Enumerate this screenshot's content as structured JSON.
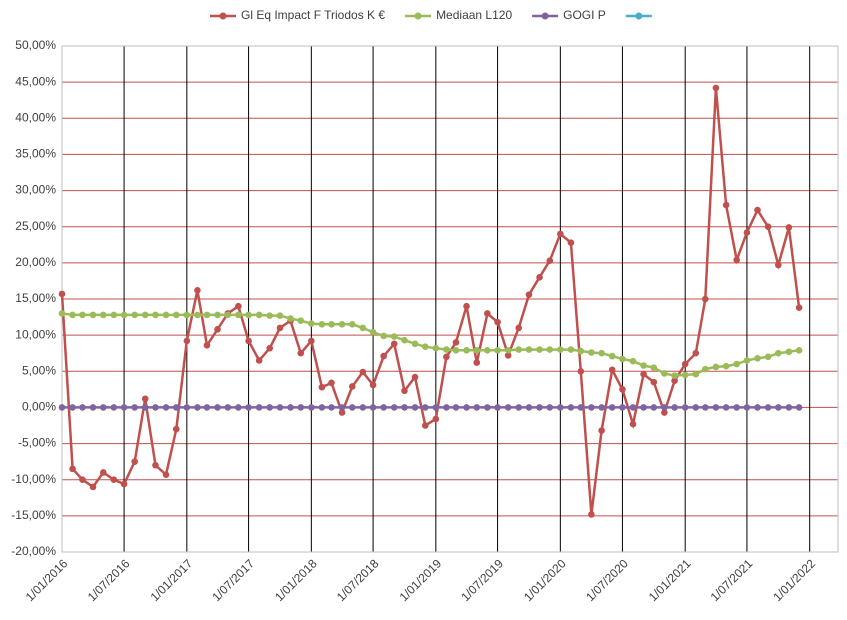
{
  "chart_data": {
    "type": "line",
    "x": [
      "2016-01-01",
      "2016-02-01",
      "2016-03-01",
      "2016-04-01",
      "2016-05-01",
      "2016-06-01",
      "2016-07-01",
      "2016-08-01",
      "2016-09-01",
      "2016-10-01",
      "2016-11-01",
      "2016-12-01",
      "2017-01-01",
      "2017-02-01",
      "2017-03-01",
      "2017-04-01",
      "2017-05-01",
      "2017-06-01",
      "2017-07-01",
      "2017-08-01",
      "2017-09-01",
      "2017-10-01",
      "2017-11-01",
      "2017-12-01",
      "2018-01-01",
      "2018-02-01",
      "2018-03-01",
      "2018-04-01",
      "2018-05-01",
      "2018-06-01",
      "2018-07-01",
      "2018-08-01",
      "2018-09-01",
      "2018-10-01",
      "2018-11-01",
      "2018-12-01",
      "2019-01-01",
      "2019-02-01",
      "2019-03-01",
      "2019-04-01",
      "2019-05-01",
      "2019-06-01",
      "2019-07-01",
      "2019-08-01",
      "2019-09-01",
      "2019-10-01",
      "2019-11-01",
      "2019-12-01",
      "2020-01-01",
      "2020-02-01",
      "2020-03-01",
      "2020-04-01",
      "2020-05-01",
      "2020-06-01",
      "2020-07-01",
      "2020-08-01",
      "2020-09-01",
      "2020-10-01",
      "2020-11-01",
      "2020-12-01",
      "2021-01-01",
      "2021-02-01",
      "2021-03-01",
      "2021-04-01",
      "2021-05-01",
      "2021-06-01",
      "2021-07-01",
      "2021-08-01",
      "2021-09-01",
      "2021-10-01",
      "2021-11-01",
      "2021-12-01"
    ],
    "series": [
      {
        "name": "Gl Eq Impact F Triodos K €",
        "color": "#c0504d",
        "values": [
          15.7,
          -8.5,
          -10,
          -11,
          -9,
          -10,
          -10.6,
          -7.5,
          1.2,
          -8,
          -9.3,
          -3,
          9.2,
          16.2,
          8.6,
          10.8,
          13,
          14,
          9.2,
          6.5,
          8.2,
          11,
          12,
          7.5,
          9.2,
          2.8,
          3.4,
          -0.7,
          2.9,
          4.9,
          3.1,
          7.1,
          8.8,
          2.3,
          4.2,
          -2.5,
          -1.6,
          7,
          9,
          14,
          6.2,
          13,
          11.8,
          7.2,
          11,
          15.6,
          18,
          20.3,
          24,
          22.8,
          5,
          -14.8,
          -3.2,
          5.2,
          2.5,
          -2.3,
          4.6,
          3.5,
          -0.7,
          3.7,
          6,
          7.5,
          15,
          44.2,
          28,
          20.4,
          24.2,
          27.3,
          25,
          19.7,
          24.9,
          13.8
        ]
      },
      {
        "name": "Mediaan L120",
        "color": "#9bbb59",
        "values": [
          13,
          12.8,
          12.8,
          12.8,
          12.8,
          12.8,
          12.8,
          12.8,
          12.8,
          12.8,
          12.8,
          12.8,
          12.8,
          12.8,
          12.8,
          12.8,
          12.8,
          12.8,
          12.8,
          12.8,
          12.7,
          12.7,
          12.3,
          12,
          11.6,
          11.5,
          11.5,
          11.5,
          11.5,
          11,
          10.4,
          9.9,
          9.8,
          9.3,
          8.8,
          8.4,
          8.2,
          8,
          7.9,
          7.9,
          7.9,
          7.9,
          7.9,
          7.9,
          8,
          8,
          8,
          8,
          8,
          8,
          7.8,
          7.6,
          7.5,
          7.1,
          6.7,
          6.4,
          5.8,
          5.5,
          4.7,
          4.4,
          4.5,
          4.6,
          5.3,
          5.6,
          5.7,
          6,
          6.5,
          6.8,
          7,
          7.5,
          7.7,
          7.9
        ]
      },
      {
        "name": "GOGI P",
        "color": "#8064a2",
        "values": [
          0,
          0,
          0,
          0,
          0,
          0,
          0,
          0,
          0,
          0,
          0,
          0,
          0,
          0,
          0,
          0,
          0,
          0,
          0,
          0,
          0,
          0,
          0,
          0,
          0,
          0,
          0,
          0,
          0,
          0,
          0,
          0,
          0,
          0,
          0,
          0,
          0,
          0,
          0,
          0,
          0,
          0,
          0,
          0,
          0,
          0,
          0,
          0,
          0,
          0,
          0,
          0,
          0,
          0,
          0,
          0,
          0,
          0,
          0,
          0,
          0,
          0,
          0,
          0,
          0,
          0,
          0,
          0,
          0,
          0,
          0,
          0
        ]
      }
    ],
    "xlim": [
      "2016-01-01",
      "2022-03-25"
    ],
    "xticks": [
      {
        "value": "2016-01-01",
        "label": "1/01/2016"
      },
      {
        "value": "2016-07-01",
        "label": "1/07/2016"
      },
      {
        "value": "2017-01-01",
        "label": "1/01/2017"
      },
      {
        "value": "2017-07-01",
        "label": "1/07/2017"
      },
      {
        "value": "2018-01-01",
        "label": "1/01/2018"
      },
      {
        "value": "2018-07-01",
        "label": "1/07/2018"
      },
      {
        "value": "2019-01-01",
        "label": "1/01/2019"
      },
      {
        "value": "2019-07-01",
        "label": "1/07/2019"
      },
      {
        "value": "2020-01-01",
        "label": "1/01/2020"
      },
      {
        "value": "2020-07-01",
        "label": "1/07/2020"
      },
      {
        "value": "2021-01-01",
        "label": "1/01/2021"
      },
      {
        "value": "2021-07-01",
        "label": "1/07/2021"
      },
      {
        "value": "2022-01-01",
        "label": "1/01/2022"
      }
    ],
    "ylim": [
      -20,
      50
    ],
    "yticks": [
      {
        "value": -20,
        "label": "-20,00%"
      },
      {
        "value": -15,
        "label": "-15,00%"
      },
      {
        "value": -10,
        "label": "-10,00%"
      },
      {
        "value": -5,
        "label": "-5,00%"
      },
      {
        "value": 0,
        "label": "0,00%"
      },
      {
        "value": 5,
        "label": "5,00%"
      },
      {
        "value": 10,
        "label": "10,00%"
      },
      {
        "value": 15,
        "label": "15,00%"
      },
      {
        "value": 20,
        "label": "20,00%"
      },
      {
        "value": 25,
        "label": "25,00%"
      },
      {
        "value": 30,
        "label": "30,00%"
      },
      {
        "value": 35,
        "label": "35,00%"
      },
      {
        "value": 40,
        "label": "40,00%"
      },
      {
        "value": 45,
        "label": "45,00%"
      },
      {
        "value": 50,
        "label": "50,00%"
      }
    ],
    "grid": true,
    "legend": "top"
  }
}
